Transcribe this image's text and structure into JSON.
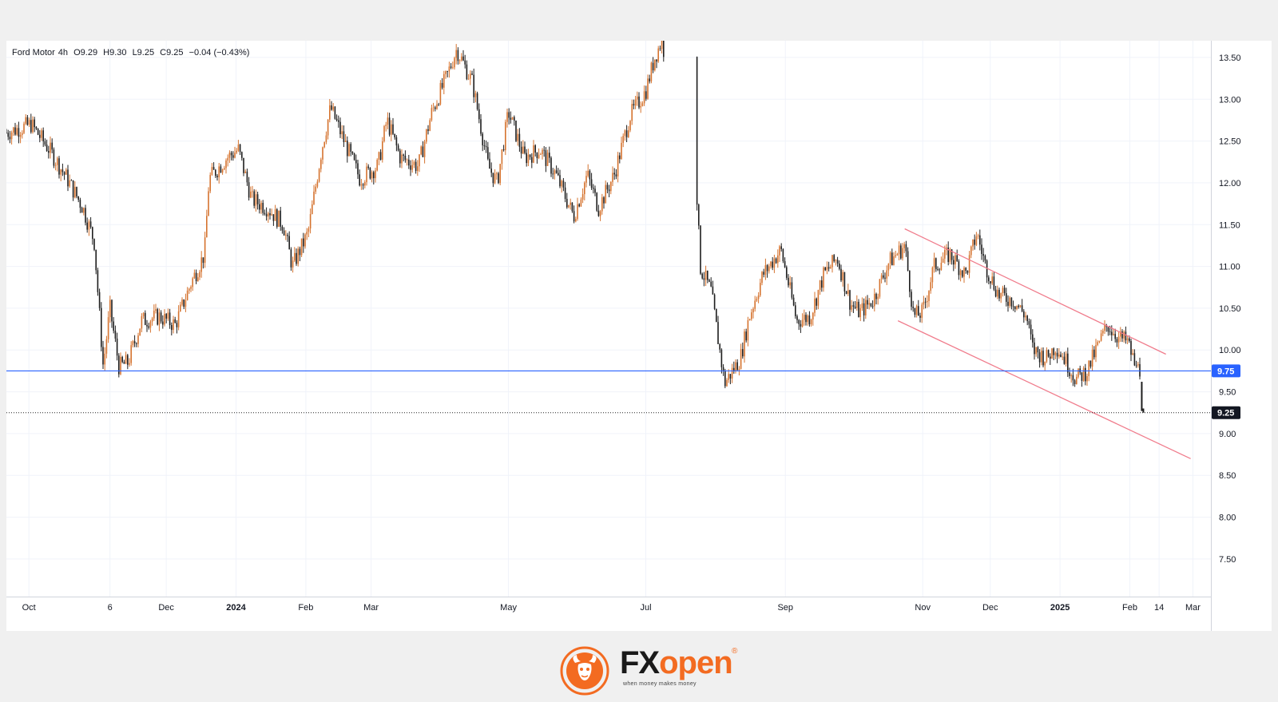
{
  "legend": {
    "symbol": "Ford Motor",
    "interval": "4h",
    "open": "O9.29",
    "high": "H9.30",
    "low": "L9.25",
    "close": "C9.25",
    "change": "−0.04 (−0.43%)"
  },
  "chart_data": {
    "type": "candlestick",
    "title": "Ford Motor, 4h",
    "y_axis": {
      "ticks": [
        "13.50",
        "13.00",
        "12.50",
        "12.00",
        "11.50",
        "11.00",
        "10.50",
        "10.00",
        "9.50",
        "9.00",
        "8.50",
        "8.00",
        "7.50"
      ],
      "range": [
        7.05,
        13.7
      ]
    },
    "x_axis": {
      "labels": [
        "Oct",
        "6",
        "Dec",
        "2024",
        "Feb",
        "Mar",
        "May",
        "Jul",
        "Sep",
        "Nov",
        "Dec",
        "2025",
        "Feb",
        "14",
        "Mar"
      ],
      "bold_labels": [
        "2024",
        "2025"
      ]
    },
    "horizontal_line": {
      "value": 9.75,
      "label": "9.75",
      "color": "#2962ff"
    },
    "last_price": {
      "value": 9.25,
      "label": "9.25"
    },
    "channel": {
      "color": "#f07c8c",
      "upper": [
        [
          "2024-10-24",
          11.45
        ],
        [
          "2025-02-17",
          9.95
        ]
      ],
      "lower": [
        [
          "2024-10-21",
          10.35
        ],
        [
          "2025-02-28",
          8.7
        ]
      ]
    },
    "price_path": [
      [
        "2023-09-21",
        12.6
      ],
      [
        "2023-10-02",
        12.7
      ],
      [
        "2023-10-10",
        12.4
      ],
      [
        "2023-10-18",
        12.05
      ],
      [
        "2023-10-25",
        11.7
      ],
      [
        "2023-10-30",
        11.3
      ],
      [
        "2023-11-03",
        9.8
      ],
      [
        "2023-11-06",
        10.5
      ],
      [
        "2023-11-10",
        9.8
      ],
      [
        "2023-11-14",
        9.85
      ],
      [
        "2023-11-20",
        10.35
      ],
      [
        "2023-11-28",
        10.4
      ],
      [
        "2023-12-05",
        10.3
      ],
      [
        "2023-12-12",
        10.8
      ],
      [
        "2023-12-18",
        11.15
      ],
      [
        "2023-12-20",
        12.05
      ],
      [
        "2023-12-28",
        12.3
      ],
      [
        "2024-01-02",
        12.4
      ],
      [
        "2024-01-08",
        11.8
      ],
      [
        "2024-01-15",
        11.7
      ],
      [
        "2024-01-22",
        11.5
      ],
      [
        "2024-01-26",
        11.0
      ],
      [
        "2024-02-02",
        11.4
      ],
      [
        "2024-02-08",
        12.4
      ],
      [
        "2024-02-12",
        12.9
      ],
      [
        "2024-02-18",
        12.5
      ],
      [
        "2024-02-25",
        12.05
      ],
      [
        "2024-03-04",
        12.2
      ],
      [
        "2024-03-08",
        12.75
      ],
      [
        "2024-03-14",
        12.3
      ],
      [
        "2024-03-22",
        12.2
      ],
      [
        "2024-03-28",
        12.85
      ],
      [
        "2024-04-04",
        13.3
      ],
      [
        "2024-04-08",
        13.6
      ],
      [
        "2024-04-15",
        13.2
      ],
      [
        "2024-04-22",
        12.2
      ],
      [
        "2024-04-26",
        12.0
      ],
      [
        "2024-05-01",
        12.85
      ],
      [
        "2024-05-08",
        12.3
      ],
      [
        "2024-05-15",
        12.4
      ],
      [
        "2024-05-22",
        12.1
      ],
      [
        "2024-05-30",
        11.6
      ],
      [
        "2024-06-05",
        12.1
      ],
      [
        "2024-06-10",
        11.7
      ],
      [
        "2024-06-17",
        12.1
      ],
      [
        "2024-06-24",
        12.8
      ],
      [
        "2024-07-01",
        13.1
      ],
      [
        "2024-07-05",
        13.5
      ],
      [
        "2024-07-08",
        13.7
      ],
      [
        "2024-07-24",
        11.8
      ],
      [
        "2024-07-25",
        11.0
      ],
      [
        "2024-07-30",
        10.7
      ],
      [
        "2024-08-05",
        9.6
      ],
      [
        "2024-08-12",
        9.9
      ],
      [
        "2024-08-16",
        10.4
      ],
      [
        "2024-08-22",
        10.9
      ],
      [
        "2024-08-30",
        11.2
      ],
      [
        "2024-09-06",
        10.35
      ],
      [
        "2024-09-12",
        10.4
      ],
      [
        "2024-09-18",
        10.9
      ],
      [
        "2024-09-24",
        11.1
      ],
      [
        "2024-09-30",
        10.55
      ],
      [
        "2024-10-04",
        10.45
      ],
      [
        "2024-10-10",
        10.6
      ],
      [
        "2024-10-17",
        11.05
      ],
      [
        "2024-10-24",
        11.25
      ],
      [
        "2024-10-28",
        10.4
      ],
      [
        "2024-11-01",
        10.45
      ],
      [
        "2024-11-06",
        11.0
      ],
      [
        "2024-11-13",
        11.15
      ],
      [
        "2024-11-20",
        10.9
      ],
      [
        "2024-11-25",
        11.4
      ],
      [
        "2024-11-29",
        11.0
      ],
      [
        "2024-12-05",
        10.65
      ],
      [
        "2024-12-11",
        10.6
      ],
      [
        "2024-12-17",
        10.4
      ],
      [
        "2024-12-20",
        10.0
      ],
      [
        "2024-12-26",
        9.9
      ],
      [
        "2024-12-30",
        10.05
      ],
      [
        "2025-01-03",
        9.9
      ],
      [
        "2025-01-08",
        9.65
      ],
      [
        "2025-01-13",
        9.75
      ],
      [
        "2025-01-17",
        10.0
      ],
      [
        "2025-01-22",
        10.3
      ],
      [
        "2025-01-27",
        10.15
      ],
      [
        "2025-01-31",
        10.1
      ],
      [
        "2025-02-04",
        9.75
      ],
      [
        "2025-02-05",
        10.0
      ],
      [
        "2025-02-06",
        9.5
      ],
      [
        "2025-02-07",
        9.25
      ]
    ]
  },
  "watermark": {
    "brand_fx": "FX",
    "brand_open": "open",
    "registered": "®",
    "tagline": "when money makes money"
  },
  "colors": {
    "candle_up": "#d5732f",
    "candle_down": "#1e1e1e",
    "axis_text": "#131722",
    "grid": "#f0f3fa",
    "channel": "#f07c8c",
    "level": "#2962ff"
  }
}
